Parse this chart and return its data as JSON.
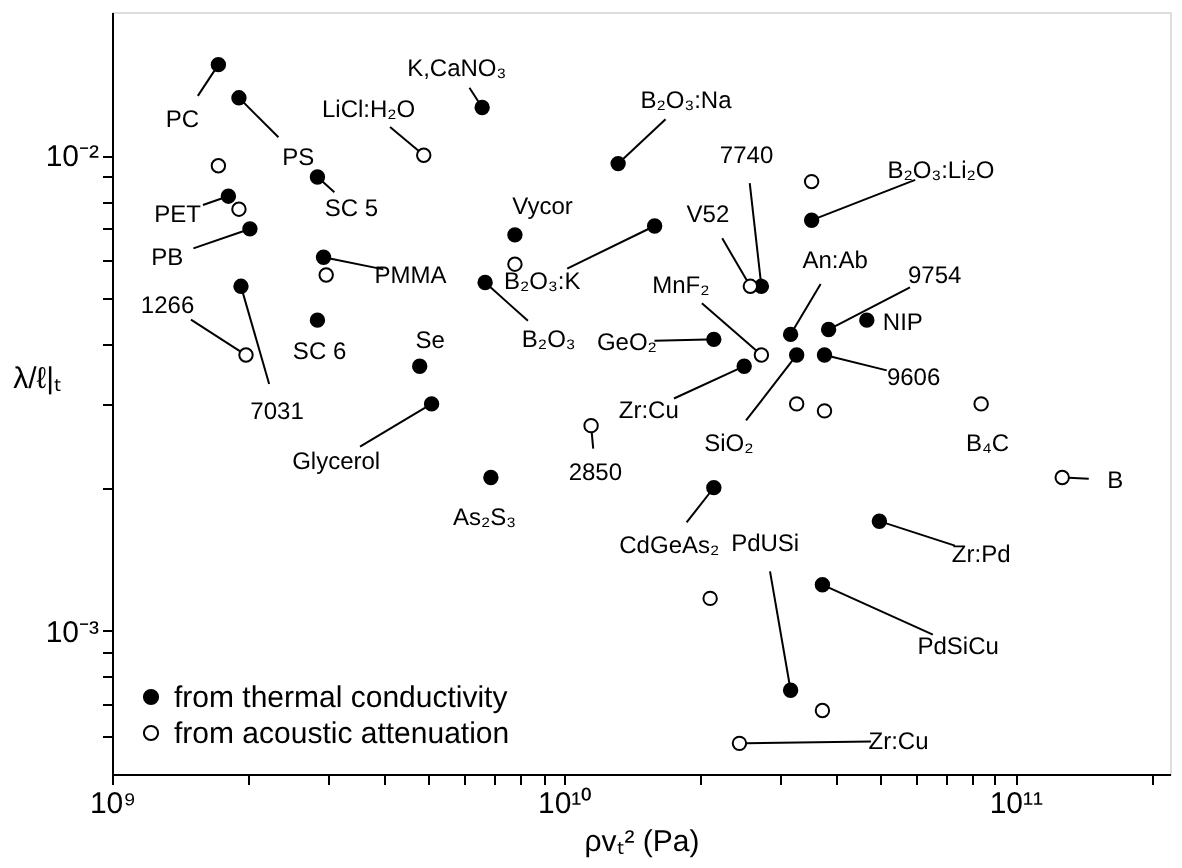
{
  "chart_data": {
    "type": "scatter",
    "xlabel": "ρvₜ² (Pa)",
    "ylabel": "λ/ℓ|ₜ",
    "log": "xy",
    "grid": false,
    "legend": "bottom left",
    "xlim": [
      1000000000.0,
      220000000000.0
    ],
    "ylim": [
      0.0005,
      0.02
    ],
    "xticks": [
      {
        "value": 1000000000.0,
        "label": "10⁹"
      },
      {
        "value": 2000000000.0,
        "label": null
      },
      {
        "value": 3000000000.0,
        "label": null
      },
      {
        "value": 4000000000.0,
        "label": null
      },
      {
        "value": 5000000000.0,
        "label": null
      },
      {
        "value": 6000000000.0,
        "label": null
      },
      {
        "value": 7000000000.0,
        "label": null
      },
      {
        "value": 8000000000.0,
        "label": null
      },
      {
        "value": 9000000000.0,
        "label": null
      },
      {
        "value": 10000000000.0,
        "label": "10¹⁰"
      },
      {
        "value": 20000000000.0,
        "label": null
      },
      {
        "value": 30000000000.0,
        "label": null
      },
      {
        "value": 40000000000.0,
        "label": null
      },
      {
        "value": 50000000000.0,
        "label": null
      },
      {
        "value": 60000000000.0,
        "label": null
      },
      {
        "value": 70000000000.0,
        "label": null
      },
      {
        "value": 80000000000.0,
        "label": null
      },
      {
        "value": 90000000000.0,
        "label": null
      },
      {
        "value": 100000000000.0,
        "label": "10¹¹"
      },
      {
        "value": 200000000000.0,
        "label": null
      }
    ],
    "yticks": [
      {
        "value": 0.0006,
        "label": null
      },
      {
        "value": 0.0007,
        "label": null
      },
      {
        "value": 0.0008,
        "label": null
      },
      {
        "value": 0.0009,
        "label": null
      },
      {
        "value": 0.001,
        "label": "10⁻³"
      },
      {
        "value": 0.002,
        "label": null
      },
      {
        "value": 0.003,
        "label": null
      },
      {
        "value": 0.004,
        "label": null
      },
      {
        "value": 0.005,
        "label": null
      },
      {
        "value": 0.006,
        "label": null
      },
      {
        "value": 0.007,
        "label": null
      },
      {
        "value": 0.008,
        "label": null
      },
      {
        "value": 0.009,
        "label": null
      },
      {
        "value": 0.01,
        "label": "10⁻²"
      }
    ],
    "series": [
      {
        "name": "from thermal conductivity",
        "color": "#000000",
        "marker": "circle",
        "x": [
          1720000000.0,
          1910000000.0,
          2850000000.0,
          1810000000.0,
          2020000000.0,
          2940000000.0,
          1930000000.0,
          2850000000.0,
          4800000000.0,
          6700000000.0,
          6600000000.0,
          7800000000.0,
          13200000000.0,
          5100000000.0,
          6900000000.0,
          15900000000.0,
          35400000000.0,
          46900000000.0,
          38600000000.0,
          31800000000.0,
          21500000000.0,
          32800000000.0,
          37800000000.0,
          25100000000.0,
          27400000000.0,
          21500000000.0,
          50000000000.0,
          37400000000.0,
          31800000000.0
        ],
        "values": [
          0.0155,
          0.0132,
          0.009,
          0.0082,
          0.007,
          0.0061,
          0.0053,
          0.0045,
          0.0036,
          0.0054,
          0.0126,
          0.0068,
          0.0096,
          0.003,
          0.0021,
          0.0071,
          0.0073,
          0.0045,
          0.0043,
          0.0042,
          0.0041,
          0.0038,
          0.0038,
          0.0036,
          0.0053,
          0.002,
          0.0017,
          0.00125,
          0.00075
        ]
      },
      {
        "name": "from acoustic attenuation",
        "color": "#000000",
        "marker": "circle_open",
        "x": [
          1720000000.0,
          1910000000.0,
          2980000000.0,
          1980000000.0,
          4900000000.0,
          7800000000.0,
          11500000000.0,
          35400000000.0,
          25900000000.0,
          27400000000.0,
          32800000000.0,
          37800000000.0,
          84000000000.0,
          127000000000.0,
          21100000000.0,
          37400000000.0,
          24500000000.0
        ],
        "values": [
          0.0095,
          0.0077,
          0.0056,
          0.0038,
          0.01,
          0.0059,
          0.0027,
          0.0088,
          0.0053,
          0.0038,
          0.003,
          0.0029,
          0.003,
          0.0021,
          0.00117,
          0.00068,
          0.00058
        ]
      }
    ],
    "annotations": [
      {
        "text": "PC",
        "x": 1720000000.0,
        "y": 0.0155
      },
      {
        "text": "PS",
        "x": 1910000000.0,
        "y": 0.0132
      },
      {
        "text": "LiCl:H₂O",
        "x": 4900000000.0,
        "y": 0.01
      },
      {
        "text": "K,CaNO₃",
        "x": 6600000000.0,
        "y": 0.0126
      },
      {
        "text": "SC 5",
        "x": 2850000000.0,
        "y": 0.009
      },
      {
        "text": "PET",
        "x": 1810000000.0,
        "y": 0.0082
      },
      {
        "text": "PB",
        "x": 2020000000.0,
        "y": 0.007
      },
      {
        "text": "1266",
        "x": 1980000000.0,
        "y": 0.0038
      },
      {
        "text": "PMMA",
        "x": 2940000000.0,
        "y": 0.0061
      },
      {
        "text": "SC 6",
        "x": 2850000000.0,
        "y": 0.0045
      },
      {
        "text": "7031",
        "x": 1930000000.0,
        "y": 0.0053
      },
      {
        "text": "Se",
        "x": 4800000000.0,
        "y": 0.0036
      },
      {
        "text": "Glycerol",
        "x": 5100000000.0,
        "y": 0.003
      },
      {
        "text": "As₂S₃",
        "x": 6900000000.0,
        "y": 0.0021
      },
      {
        "text": "Vycor",
        "x": 7800000000.0,
        "y": 0.0068
      },
      {
        "text": "B₂O₃:K",
        "x": 15900000000.0,
        "y": 0.0071
      },
      {
        "text": "B₂O₃",
        "x": 6700000000.0,
        "y": 0.0054
      },
      {
        "text": "B₂O₃:Na",
        "x": 13200000000.0,
        "y": 0.0096
      },
      {
        "text": "7740",
        "x": 27400000000.0,
        "y": 0.0053
      },
      {
        "text": "V52",
        "x": 25900000000.0,
        "y": 0.0053
      },
      {
        "text": "MnF₂",
        "x": 27400000000.0,
        "y": 0.0038
      },
      {
        "text": "GeO₂",
        "x": 21500000000.0,
        "y": 0.0041
      },
      {
        "text": "An:Ab",
        "x": 31800000000.0,
        "y": 0.0042
      },
      {
        "text": "9754",
        "x": 38600000000.0,
        "y": 0.0043
      },
      {
        "text": "NIP",
        "x": 46900000000.0,
        "y": 0.0045
      },
      {
        "text": "9606",
        "x": 37800000000.0,
        "y": 0.0038
      },
      {
        "text": "B₂O₃:Li₂O",
        "x": 35400000000.0,
        "y": 0.0073
      },
      {
        "text": "Zr:Cu",
        "x": 25100000000.0,
        "y": 0.0036
      },
      {
        "text": "SiO₂",
        "x": 32800000000.0,
        "y": 0.0038
      },
      {
        "text": "2850",
        "x": 11500000000.0,
        "y": 0.0027
      },
      {
        "text": "B₄C",
        "x": 84000000000.0,
        "y": 0.003
      },
      {
        "text": "B",
        "x": 127000000000.0,
        "y": 0.0021
      },
      {
        "text": "Zr:Pd",
        "x": 50000000000.0,
        "y": 0.0017
      },
      {
        "text": "CdGeAs₂",
        "x": 21500000000.0,
        "y": 0.002
      },
      {
        "text": "PdUSi",
        "x": 31800000000.0,
        "y": 0.00075
      },
      {
        "text": "PdSiCu",
        "x": 37400000000.0,
        "y": 0.00125
      },
      {
        "text": "Zr:Cu",
        "x": 24500000000.0,
        "y": 0.00058
      }
    ]
  }
}
